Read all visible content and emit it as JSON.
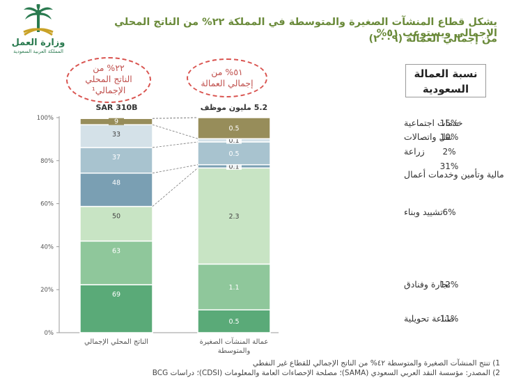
{
  "header": {
    "title_line1": "يشكل قطاع المنشآت الصغيرة والمتوسطة في المملكة ٢٢% من الناتج المحلي الإجمالي ويستوعب ٥١%",
    "title_line2": "من إجمالي العمالة (٢٠٠٩)"
  },
  "logo": {
    "name": "وزارة العمل",
    "subtitle": "المملكة العربية السعودية",
    "icon": "palm-swords-emblem-icon",
    "color": "#2a7a4f"
  },
  "callouts": {
    "gdp": [
      "٢٢% من",
      "الناتج المحلي",
      "الإجمالي¹"
    ],
    "employment": [
      "٥١% من",
      "إجمالي العمالة"
    ]
  },
  "column_headers": {
    "gdp_total": "SAR 310B",
    "employment_total": "5.2 مليون موظف",
    "saudization": [
      "نسبة العمالة",
      "السعودية"
    ]
  },
  "chart_data": {
    "type": "bar",
    "stacked": true,
    "y_axis_ticks": [
      "0%",
      "20%",
      "40%",
      "60%",
      "80%",
      "100%"
    ],
    "ylim": [
      0,
      100
    ],
    "categories": [
      "الناتج المحلي الإجمالي",
      "عمالة المنشآت الصغيرة والمتوسطة"
    ],
    "bars": [
      {
        "segments": [
          {
            "label": "69",
            "share": 22.3,
            "color": "#5aaa78"
          },
          {
            "label": "63",
            "share": 20.3,
            "color": "#8fc79b"
          },
          {
            "label": "50",
            "share": 16.1,
            "color": "#c8e4c4"
          },
          {
            "label": "48",
            "share": 15.5,
            "color": "#7a9fb3"
          },
          {
            "label": "37",
            "share": 11.9,
            "color": "#a8c3cf"
          },
          {
            "label": "33",
            "share": 10.6,
            "color": "#d4e1e8"
          },
          {
            "label": "9",
            "share": 2.9,
            "color": "#978d5a"
          }
        ]
      },
      {
        "segments": [
          {
            "label": "0.5",
            "share": 10.6,
            "color": "#5aaa78"
          },
          {
            "label": "1.1",
            "share": 21.3,
            "color": "#8fc79b"
          },
          {
            "label": "2.3",
            "share": 44.7,
            "color": "#c8e4c4"
          },
          {
            "label": "0.1",
            "share": 1.5,
            "color": "#7a9fb3"
          },
          {
            "label": "0.5",
            "share": 10.6,
            "color": "#a8c3cf"
          },
          {
            "label": "0.1",
            "share": 1.5,
            "color": "#d4e1e8"
          },
          {
            "label": "0.5",
            "share": 9.8,
            "color": "#978d5a"
          }
        ]
      }
    ],
    "sectors": [
      {
        "name": "صناعة تحويلية",
        "saudi_share": "11%"
      },
      {
        "name": "تجارة وفنادق",
        "saudi_share": "12%"
      },
      {
        "name": "تشييد وبناء",
        "saudi_share": "6%"
      },
      {
        "name": "مالية وتأمين وخدمات أعمال",
        "saudi_share": "31%"
      },
      {
        "name": "زراعة",
        "saudi_share": "2%"
      },
      {
        "name": "نقل واتصالات",
        "saudi_share": "10%"
      },
      {
        "name": "خدمات اجتماعية",
        "saudi_share": "15%"
      }
    ],
    "grid": false
  },
  "footnotes": {
    "note1": "1)  تنتج المنشآت الصغيرة والمتوسطة ٤٢% من الناتج الإجمالي للقطاع غير النفطي",
    "note2": "2)  المصدر: مؤسسة النقد العربي السعودي (SAMA)؛ مصلحة الإحصاءات العامة والمعلومات (CDSI)؛ دراسات  BCG"
  }
}
